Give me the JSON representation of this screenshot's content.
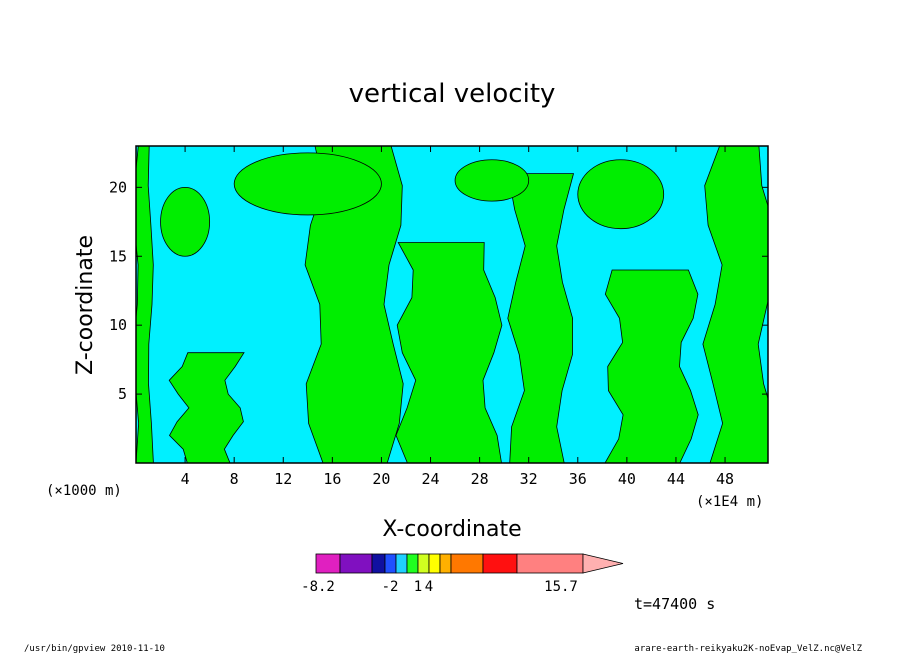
{
  "chart_data": {
    "type": "heatmap",
    "title": "vertical velocity",
    "xlabel": "X-coordinate",
    "ylabel": "Z-coordinate",
    "x_unit_left": "(×1000 m)",
    "x_unit_right": "(×1E4 m)",
    "xlim": [
      0,
      51.5
    ],
    "ylim": [
      0,
      23
    ],
    "x_ticks": [
      4,
      8,
      12,
      16,
      20,
      24,
      28,
      32,
      36,
      40,
      44,
      48
    ],
    "y_ticks": [
      5,
      10,
      15,
      20
    ],
    "colorbar": {
      "levels": [
        -8.2,
        -6.2,
        -4.2,
        -2,
        -1,
        0,
        1,
        2,
        3,
        4,
        6,
        8,
        10,
        15.7
      ],
      "colors": [
        "#e020c0",
        "#8010c0",
        "#1010a0",
        "#2050ff",
        "#20d0ff",
        "#20ff20",
        "#d0ff20",
        "#ffff00",
        "#ffb000",
        "#ff7800",
        "#ff1010",
        "#ff8080",
        "#ffb0b0"
      ],
      "tick_labels": [
        "-8.2",
        "-2",
        "1",
        "4",
        "15.7"
      ]
    },
    "dominant_fields": {
      "negative_color": "#00f0ff",
      "positive_color": "#00ee00"
    },
    "positive_bands": [
      {
        "x": [
          0,
          1.2
        ],
        "z": [
          0,
          23
        ]
      },
      {
        "x": [
          3.5,
          8
        ],
        "z": [
          0,
          8
        ]
      },
      {
        "x": [
          14.5,
          21
        ],
        "z": [
          0,
          23
        ]
      },
      {
        "x": [
          22,
          29
        ],
        "z": [
          0,
          16
        ]
      },
      {
        "x": [
          31,
          35
        ],
        "z": [
          0,
          21
        ]
      },
      {
        "x": [
          39,
          45
        ],
        "z": [
          0,
          14
        ]
      },
      {
        "x": [
          47,
          51.5
        ],
        "z": [
          0,
          23
        ]
      }
    ]
  },
  "time_label": "t=47400 s",
  "footer": {
    "left": "/usr/bin/gpview   2010-11-10",
    "right": "arare-earth-reikyaku2K-noEvap_VelZ.nc@VelZ"
  }
}
